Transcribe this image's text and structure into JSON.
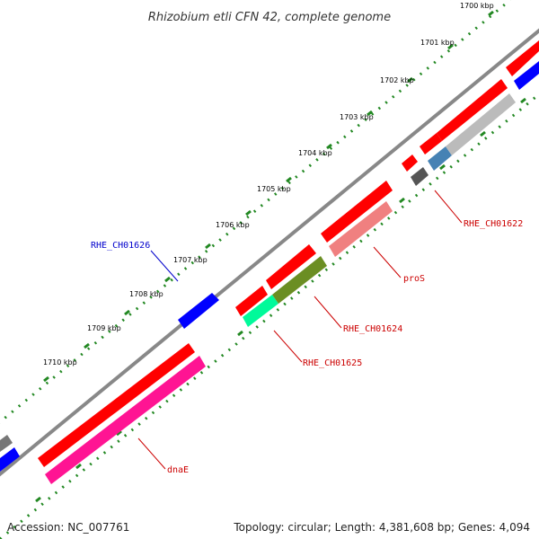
{
  "title": "Rhizobium etli CFN 42, complete genome",
  "ticks": [
    "1700 kbp",
    "1701 kbp",
    "1702 kbp",
    "1703 kbp",
    "1704 kbp",
    "1705 kbp",
    "1706 kbp",
    "1707 kbp",
    "1708 kbp",
    "1709 kbp",
    "1710 kbp"
  ],
  "labels": {
    "rhe_ch01622": "RHE_CH01622",
    "pros": "proS",
    "rhe_ch01624": "RHE_CH01624",
    "rhe_ch01625": "RHE_CH01625",
    "rhe_ch01626": "RHE_CH01626",
    "dnae": "dnaE"
  },
  "footer": {
    "accession": "Accession: NC_007761",
    "topology": "Topology: circular; Length: 4,381,608 bp; Genes: 4,094"
  },
  "colors": {
    "backbone": "#888888",
    "cds_forward": "#ff0000",
    "cds_reverse_blue": "#0000ff",
    "label_red": "#cc0000",
    "label_blue": "#0000cc",
    "tick_green": "#228822",
    "dnaE_track": "#ff1493",
    "proS_track": "#f08080",
    "rhe01624_track": "#6b8e23",
    "rhe01625_track": "#00fa9a",
    "grey_track": "#bbbbbb",
    "steel_track": "#4682b4",
    "dark_grey": "#555555"
  }
}
